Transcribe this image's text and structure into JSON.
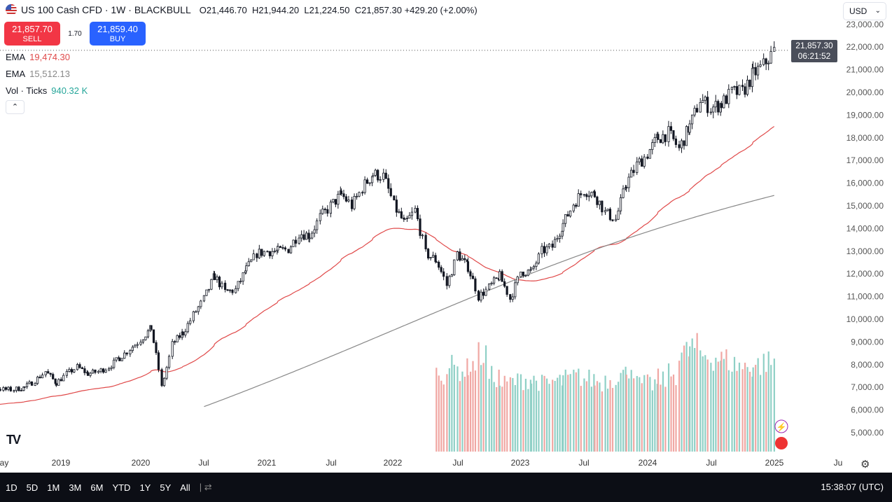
{
  "header": {
    "symbol": "US 100 Cash CFD · 1W · BLACKBULL",
    "open": "O21,446.70",
    "high": "H21,944.20",
    "low": "L21,224.50",
    "close": "C21,857.30",
    "change": "+429.20 (+2.00%)"
  },
  "trade": {
    "sell_price": "21,857.70",
    "sell_label": "SELL",
    "spread": "1.70",
    "buy_price": "21,859.40",
    "buy_label": "BUY"
  },
  "indicators": [
    {
      "name": "EMA",
      "value": "19,474.30",
      "color": "#e04a4a"
    },
    {
      "name": "EMA",
      "value": "15,512.13",
      "color": "#888888"
    },
    {
      "name": "Vol · Ticks",
      "value": "940.32 K",
      "color": "#26a69a"
    }
  ],
  "currency": "USD",
  "price_label": {
    "price": "21,857.30",
    "countdown": "06:21:52"
  },
  "bottom": {
    "ranges": [
      "1D",
      "5D",
      "1M",
      "3M",
      "6M",
      "YTD",
      "1Y",
      "5Y",
      "All"
    ],
    "time": "15:38:07 (UTC)"
  },
  "colors": {
    "up": "#131722",
    "down": "#131722",
    "vol_up": "#8fd0c6",
    "vol_down": "#f0a7a3",
    "ema_fast": "#e04a4a",
    "ema_slow": "#888888"
  },
  "chart_data": {
    "type": "candlestick",
    "interval": "1W",
    "y_ticks": [
      "23,000.00",
      "22,000.00",
      "21,000.00",
      "20,000.00",
      "19,000.00",
      "18,000.00",
      "17,000.00",
      "16,000.00",
      "15,000.00",
      "14,000.00",
      "13,000.00",
      "12,000.00",
      "11,000.00",
      "10,000.00",
      "9,000.00",
      "8,000.00",
      "7,000.00",
      "6,000.00",
      "5,000.00"
    ],
    "x_ticks": [
      "ay",
      "2019",
      "2020",
      "Jul",
      "2021",
      "Jul",
      "2022",
      "Jul",
      "2023",
      "Jul",
      "2024",
      "Jul",
      "2025",
      "Ju"
    ],
    "monthly_close_start": "2018-07",
    "monthly_close": [
      7300,
      7400,
      7500,
      7100,
      7000,
      6900,
      6900,
      7000,
      7300,
      7700,
      7200,
      7600,
      7900,
      7600,
      7700,
      7900,
      8300,
      8700,
      9100,
      9600,
      7000,
      8900,
      9400,
      10200,
      10900,
      11900,
      11200,
      11300,
      12200,
      12900,
      13000,
      13000,
      13100,
      13800,
      13700,
      14500,
      15000,
      15500,
      15000,
      15800,
      16400,
      16300,
      15000,
      14200,
      14800,
      12900,
      12600,
      11500,
      12900,
      12300,
      11000,
      11400,
      11900,
      10900,
      12100,
      12100,
      13000,
      13200,
      14200,
      15100,
      15700,
      15500,
      14700,
      14400,
      16000,
      16800,
      17300,
      18000,
      18200,
      17500,
      18500,
      19700,
      19300,
      19500,
      20000,
      20000,
      20800,
      21200,
      21857
    ],
    "volume_start": "2022-05",
    "monthly_volume_k": [
      650,
      700,
      680,
      720,
      800,
      620,
      560,
      580,
      600,
      590,
      560,
      580,
      600,
      620,
      600,
      580,
      600,
      640,
      700,
      560,
      560,
      600,
      640,
      820,
      860,
      800,
      780,
      760,
      720,
      700,
      720,
      740,
      750
    ]
  }
}
